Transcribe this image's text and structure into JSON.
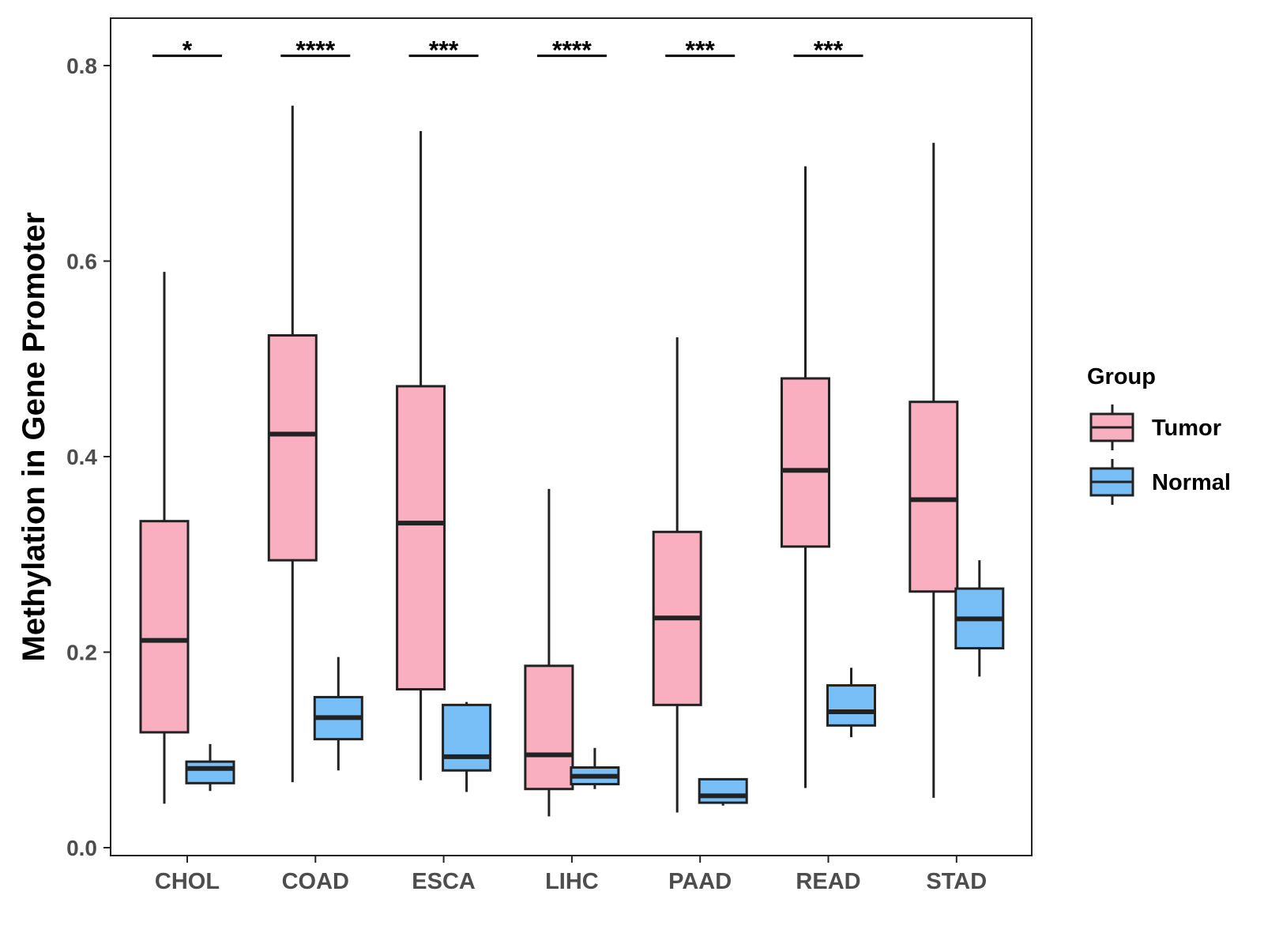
{
  "chart_data": {
    "type": "boxplot",
    "ylabel": "Methylation in Gene Promoter",
    "xlabel": "",
    "ylim": [
      0.0,
      0.85
    ],
    "yticks": [
      "0.0",
      "0.2",
      "0.4",
      "0.6",
      "0.8"
    ],
    "ytick_values": [
      0.0,
      0.2,
      0.4,
      0.6,
      0.8
    ],
    "categories": [
      "CHOL",
      "COAD",
      "ESCA",
      "LIHC",
      "PAAD",
      "READ",
      "STAD"
    ],
    "legend": {
      "title": "Group",
      "entries": [
        {
          "name": "Tumor",
          "color": "#F9AFC0"
        },
        {
          "name": "Normal",
          "color": "#78BEF7"
        }
      ]
    },
    "series": [
      {
        "name": "Tumor",
        "color": "#F9AFC0",
        "boxes": [
          {
            "min": 0.045,
            "q1": 0.118,
            "median": 0.212,
            "q3": 0.334,
            "max": 0.589
          },
          {
            "min": 0.067,
            "q1": 0.294,
            "median": 0.423,
            "q3": 0.524,
            "max": 0.759
          },
          {
            "min": 0.069,
            "q1": 0.162,
            "median": 0.332,
            "q3": 0.472,
            "max": 0.733
          },
          {
            "min": 0.032,
            "q1": 0.06,
            "median": 0.095,
            "q3": 0.186,
            "max": 0.367
          },
          {
            "min": 0.036,
            "q1": 0.146,
            "median": 0.235,
            "q3": 0.323,
            "max": 0.522
          },
          {
            "min": 0.061,
            "q1": 0.308,
            "median": 0.386,
            "q3": 0.48,
            "max": 0.697
          },
          {
            "min": 0.051,
            "q1": 0.262,
            "median": 0.356,
            "q3": 0.456,
            "max": 0.721
          }
        ]
      },
      {
        "name": "Normal",
        "color": "#78BEF7",
        "boxes": [
          {
            "min": 0.058,
            "q1": 0.066,
            "median": 0.081,
            "q3": 0.088,
            "max": 0.106
          },
          {
            "min": 0.079,
            "q1": 0.111,
            "median": 0.133,
            "q3": 0.154,
            "max": 0.195
          },
          {
            "min": 0.057,
            "q1": 0.079,
            "median": 0.093,
            "q3": 0.146,
            "max": 0.149
          },
          {
            "min": 0.06,
            "q1": 0.065,
            "median": 0.073,
            "q3": 0.082,
            "max": 0.102
          },
          {
            "min": 0.043,
            "q1": 0.046,
            "median": 0.053,
            "q3": 0.07,
            "max": 0.07
          },
          {
            "min": 0.113,
            "q1": 0.125,
            "median": 0.139,
            "q3": 0.166,
            "max": 0.184
          },
          {
            "min": 0.175,
            "q1": 0.204,
            "median": 0.234,
            "q3": 0.265,
            "max": 0.294
          }
        ]
      }
    ],
    "significance": [
      {
        "category": "CHOL",
        "label": "*",
        "y": 0.81
      },
      {
        "category": "COAD",
        "label": "****",
        "y": 0.81
      },
      {
        "category": "ESCA",
        "label": "***",
        "y": 0.81
      },
      {
        "category": "LIHC",
        "label": "****",
        "y": 0.81
      },
      {
        "category": "PAAD",
        "label": "***",
        "y": 0.81
      },
      {
        "category": "READ",
        "label": "***",
        "y": 0.81
      }
    ]
  }
}
